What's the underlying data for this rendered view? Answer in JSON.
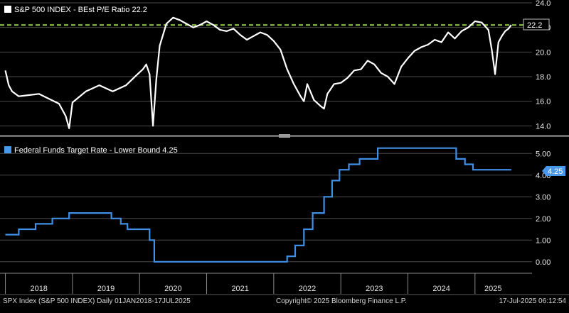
{
  "colors": {
    "background": "#000000",
    "pe_line": "#ffffff",
    "pe_reference": "#8fd14f",
    "fed_line": "#3f8fe6",
    "fed_tag": "#4a98ea",
    "grid": "#4a4a4a",
    "divider": "#8a8a8a"
  },
  "chart_data": [
    {
      "type": "line",
      "legend_label": "S&P 500 INDEX - BEst P/E Ratio 22.2",
      "last_value_tag": "22.2",
      "reference_line": 22.2,
      "ylim": [
        13.5,
        24.0
      ],
      "yticks": [
        24.0,
        22.0,
        20.0,
        18.0,
        16.0,
        14.0
      ],
      "ytick_labels": [
        "24.0",
        "22.0",
        "20.0",
        "18.0",
        "16.0",
        "14.0"
      ],
      "legend_position": "top-left",
      "grid": "horizontal",
      "series": [
        {
          "x": [
            2018.0,
            2018.05,
            2018.1,
            2018.2,
            2018.35,
            2018.5,
            2018.65,
            2018.8,
            2018.9,
            2018.95,
            2019.0,
            2019.2,
            2019.4,
            2019.6,
            2019.8,
            2019.95,
            2020.05,
            2020.1,
            2020.15,
            2020.2,
            2020.25,
            2020.3,
            2020.4,
            2020.5,
            2020.6,
            2020.7,
            2020.8,
            2020.9,
            2021.0,
            2021.1,
            2021.2,
            2021.3,
            2021.4,
            2021.5,
            2021.6,
            2021.7,
            2021.8,
            2021.9,
            2022.0,
            2022.1,
            2022.2,
            2022.3,
            2022.4,
            2022.45,
            2022.5,
            2022.6,
            2022.7,
            2022.75,
            2022.8,
            2022.9,
            2023.0,
            2023.1,
            2023.2,
            2023.3,
            2023.4,
            2023.5,
            2023.6,
            2023.7,
            2023.8,
            2023.9,
            2024.0,
            2024.1,
            2024.2,
            2024.3,
            2024.4,
            2024.5,
            2024.6,
            2024.7,
            2024.8,
            2024.9,
            2025.0,
            2025.1,
            2025.2,
            2025.25,
            2025.3,
            2025.35,
            2025.4,
            2025.45,
            2025.5,
            2025.54
          ],
          "y": [
            18.5,
            17.3,
            16.8,
            16.4,
            16.5,
            16.6,
            16.2,
            15.8,
            14.8,
            13.8,
            15.9,
            16.8,
            17.3,
            16.8,
            17.3,
            18.1,
            18.6,
            19.0,
            18.2,
            14.0,
            17.8,
            20.5,
            22.3,
            22.8,
            22.6,
            22.3,
            22.0,
            22.2,
            22.5,
            22.2,
            21.8,
            21.7,
            21.9,
            21.4,
            21.0,
            21.3,
            21.6,
            21.4,
            20.9,
            20.2,
            18.6,
            17.4,
            16.4,
            16.0,
            17.4,
            16.1,
            15.6,
            15.4,
            16.6,
            17.4,
            17.5,
            17.9,
            18.5,
            18.6,
            19.3,
            19.0,
            18.3,
            18.0,
            17.4,
            18.8,
            19.5,
            20.1,
            20.4,
            20.6,
            21.0,
            20.8,
            21.6,
            21.1,
            21.7,
            22.0,
            22.5,
            22.4,
            21.8,
            20.2,
            18.2,
            20.8,
            21.3,
            21.7,
            21.9,
            22.2
          ]
        }
      ]
    },
    {
      "type": "line",
      "legend_label": "Federal Funds Target Rate - Lower Bound 4.25",
      "last_value_tag": "4.25",
      "ylim": [
        -0.5,
        5.6
      ],
      "yticks": [
        5.0,
        4.0,
        3.0,
        2.0,
        1.0,
        0.0
      ],
      "ytick_labels": [
        "5.00",
        "4.00",
        "3.00",
        "2.00",
        "1.00",
        "0.00"
      ],
      "legend_position": "top-left",
      "grid": "horizontal",
      "series": [
        {
          "x": [
            2018.0,
            2018.2,
            2018.45,
            2018.7,
            2018.95,
            2019.58,
            2019.72,
            2019.82,
            2020.15,
            2020.22,
            2022.2,
            2022.32,
            2022.45,
            2022.58,
            2022.75,
            2022.87,
            2022.98,
            2023.12,
            2023.28,
            2023.55,
            2024.72,
            2024.85,
            2024.97,
            2025.54
          ],
          "y": [
            1.25,
            1.5,
            1.75,
            2.0,
            2.25,
            2.0,
            1.75,
            1.5,
            1.0,
            0.0,
            0.25,
            0.75,
            1.5,
            2.25,
            3.0,
            3.75,
            4.25,
            4.5,
            4.75,
            5.25,
            4.75,
            4.5,
            4.25,
            4.25
          ]
        }
      ]
    }
  ],
  "x_axis": {
    "xlim": [
      2017.92,
      2025.85
    ],
    "year_labels": [
      "2018",
      "2019",
      "2020",
      "2021",
      "2022",
      "2023",
      "2024",
      "2025"
    ]
  },
  "footer": {
    "left": "SPX Index (S&P 500 INDEX)  Daily 01JAN2018-17JUL2025",
    "center": "Copyright© 2025 Bloomberg Finance L.P.",
    "right": "17-Jul-2025 06:12:54"
  }
}
